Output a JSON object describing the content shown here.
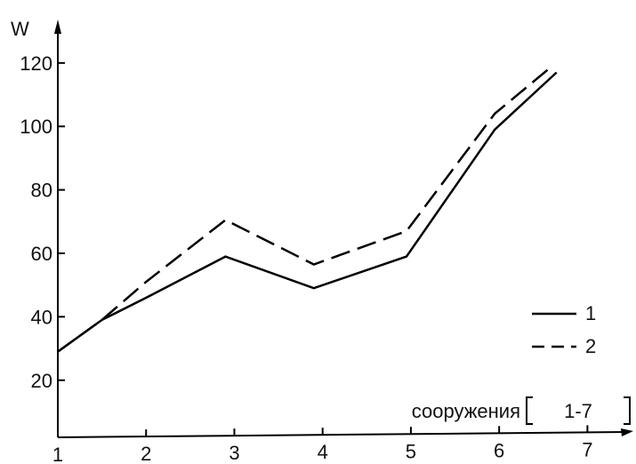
{
  "chart_data": {
    "type": "line",
    "title": "",
    "ylabel": "W",
    "xlabel": "сооружения [1-7]",
    "xlabel_main": "сооружения",
    "xlabel_bracket": "1-7",
    "x_ticks": [
      1,
      2,
      3,
      4,
      5,
      6,
      7
    ],
    "y_ticks": [
      20,
      40,
      60,
      80,
      100,
      120
    ],
    "xlim": [
      1,
      7.5
    ],
    "ylim": [
      2,
      132
    ],
    "grid": false,
    "legend_position": "right",
    "series": [
      {
        "name": "1",
        "style": "solid",
        "color": "#000000",
        "x": [
          1,
          1.5,
          2,
          2.9,
          3.9,
          4.95,
          5.95,
          6.65
        ],
        "y": [
          29,
          39,
          46,
          59,
          49,
          59,
          99,
          117
        ]
      },
      {
        "name": "2",
        "style": "dashed",
        "color": "#000000",
        "x": [
          1,
          1.5,
          2,
          2.9,
          3.9,
          4.95,
          5.95,
          6.6
        ],
        "y": [
          29,
          39,
          51,
          70.5,
          56.5,
          67,
          104,
          119
        ]
      }
    ]
  }
}
